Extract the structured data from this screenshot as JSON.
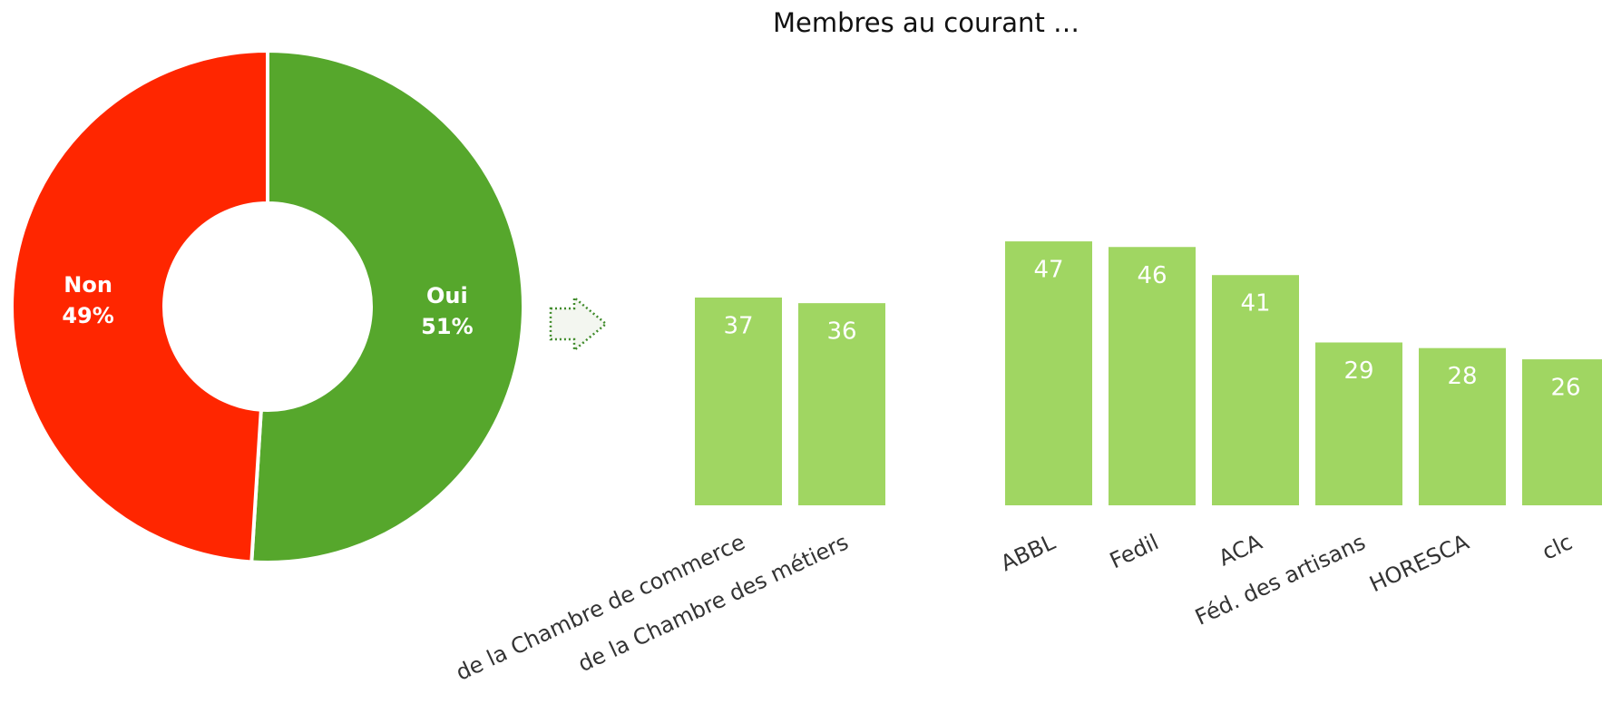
{
  "chart_data": [
    {
      "type": "donut",
      "categories": [
        "Oui",
        "Non"
      ],
      "values": [
        51,
        49
      ],
      "value_labels": [
        "51%",
        "49%"
      ],
      "colors": [
        "#56a72c",
        "#ff2600"
      ]
    },
    {
      "type": "bar",
      "title": "Membres au courant …",
      "categories": [
        "de la Chambre de commerce",
        "de la Chambre des métiers",
        null,
        "ABBL",
        "Fedil",
        "ACA",
        "Féd. des artisans",
        "HORESCA",
        "clc"
      ],
      "values": [
        37,
        36,
        null,
        47,
        46,
        41,
        29,
        28,
        26
      ],
      "color": "#a0d662"
    }
  ]
}
